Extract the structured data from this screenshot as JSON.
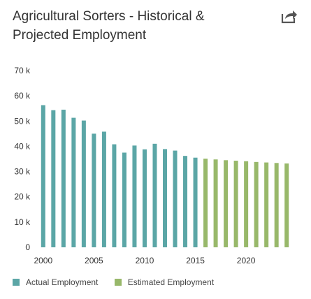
{
  "header": {
    "title_line1": "Agricultural Sorters - Historical &",
    "title_line2": "Projected Employment",
    "share_icon": "share-icon"
  },
  "colors": {
    "actual": "#5ba6a6",
    "estimated": "#98b86a",
    "axis_text": "#333333",
    "title": "#333333"
  },
  "chart_data": {
    "type": "bar",
    "title": "Agricultural Sorters - Historical & Projected Employment",
    "xlabel": "",
    "ylabel": "",
    "ylim": [
      0,
      70000
    ],
    "yticks": [
      {
        "value": 0,
        "label": "0"
      },
      {
        "value": 10000,
        "label": "10 k"
      },
      {
        "value": 20000,
        "label": "20 k"
      },
      {
        "value": 30000,
        "label": "30 k"
      },
      {
        "value": 40000,
        "label": "40 k"
      },
      {
        "value": 50000,
        "label": "50 k"
      },
      {
        "value": 60000,
        "label": "60 k"
      },
      {
        "value": 70000,
        "label": "70 k"
      }
    ],
    "xticks": [
      {
        "value": 2000,
        "label": "2000"
      },
      {
        "value": 2005,
        "label": "2005"
      },
      {
        "value": 2010,
        "label": "2010"
      },
      {
        "value": 2015,
        "label": "2015"
      },
      {
        "value": 2020,
        "label": "2020"
      }
    ],
    "grid": false,
    "legend_position": "bottom-left",
    "series": [
      {
        "name": "Actual Employment",
        "x": [
          2000,
          2001,
          2002,
          2003,
          2004,
          2005,
          2006,
          2007,
          2008,
          2009,
          2010,
          2011,
          2012,
          2013,
          2014,
          2015
        ],
        "values": [
          56300,
          54300,
          54500,
          51300,
          50200,
          45000,
          45800,
          40800,
          37500,
          40300,
          38800,
          41000,
          38900,
          38300,
          36200,
          35500
        ]
      },
      {
        "name": "Estimated Employment",
        "x": [
          2016,
          2017,
          2018,
          2019,
          2020,
          2021,
          2022,
          2023,
          2024
        ],
        "values": [
          35100,
          34800,
          34500,
          34300,
          34100,
          33800,
          33600,
          33400,
          33200
        ]
      }
    ]
  }
}
